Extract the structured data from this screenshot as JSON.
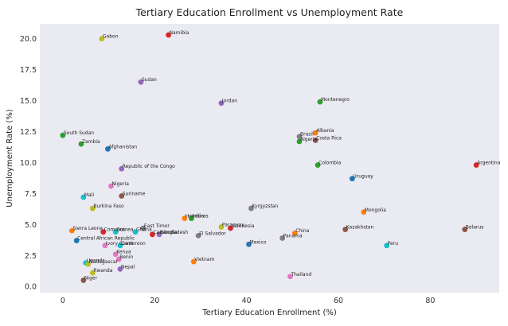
{
  "chart_data": {
    "type": "scatter",
    "title": "Tertiary Education Enrollment vs Unemployment Rate",
    "xlabel": "Tertiary Education Enrollment (%)",
    "ylabel": "Unemployment Rate (%)",
    "xlim": [
      -5,
      95
    ],
    "ylim": [
      -0.5,
      21.2
    ],
    "xticks": [
      0,
      20,
      40,
      60,
      80
    ],
    "yticks": [
      0.0,
      2.5,
      5.0,
      7.5,
      10.0,
      12.5,
      15.0,
      17.5,
      20.0
    ],
    "xtick_labels": [
      "0",
      "20",
      "40",
      "60",
      "80"
    ],
    "ytick_labels": [
      "0.0",
      "2.5",
      "5.0",
      "7.5",
      "10.0",
      "12.5",
      "15.0",
      "17.5",
      "20.0"
    ],
    "grid": false,
    "points": [
      {
        "label": "Gabon",
        "x": 8.5,
        "y": 20.0,
        "color": "#bcbd22"
      },
      {
        "label": "Namibia",
        "x": 23.0,
        "y": 20.3,
        "color": "#d62728"
      },
      {
        "label": "Sudan",
        "x": 17.0,
        "y": 16.5,
        "color": "#9467bd"
      },
      {
        "label": "Jordan",
        "x": 34.5,
        "y": 14.8,
        "color": "#9467bd"
      },
      {
        "label": "Montenegro",
        "x": 56.0,
        "y": 14.9,
        "color": "#2ca02c"
      },
      {
        "label": "South Sudan",
        "x": 0.0,
        "y": 12.2,
        "color": "#2ca02c"
      },
      {
        "label": "Albania",
        "x": 55.0,
        "y": 12.4,
        "color": "#ff7f0e"
      },
      {
        "label": "Brazil",
        "x": 51.5,
        "y": 12.1,
        "color": "#7f7f7f"
      },
      {
        "label": "Costa Rica",
        "x": 55.0,
        "y": 11.8,
        "color": "#8c564b"
      },
      {
        "label": "Algeria",
        "x": 51.5,
        "y": 11.7,
        "color": "#2ca02c"
      },
      {
        "label": "Zambia",
        "x": 4.0,
        "y": 11.5,
        "color": "#2ca02c"
      },
      {
        "label": "Afghanistan",
        "x": 9.8,
        "y": 11.1,
        "color": "#1f77b4"
      },
      {
        "label": "Argentina",
        "x": 90.0,
        "y": 9.8,
        "color": "#d62728"
      },
      {
        "label": "Colombia",
        "x": 55.5,
        "y": 9.8,
        "color": "#2ca02c"
      },
      {
        "label": "Republic of the Congo",
        "x": 12.8,
        "y": 9.5,
        "color": "#9467bd"
      },
      {
        "label": "Uruguay",
        "x": 63.0,
        "y": 8.7,
        "color": "#1f77b4"
      },
      {
        "label": "Nigeria",
        "x": 10.5,
        "y": 8.1,
        "color": "#e377c2"
      },
      {
        "label": "Mali",
        "x": 4.5,
        "y": 7.2,
        "color": "#17becf"
      },
      {
        "label": "Suriname",
        "x": 12.8,
        "y": 7.3,
        "color": "#8c564b"
      },
      {
        "label": "Kyrgyzstan",
        "x": 41.0,
        "y": 6.3,
        "color": "#7f7f7f"
      },
      {
        "label": "Burkina Faso",
        "x": 6.5,
        "y": 6.3,
        "color": "#bcbd22"
      },
      {
        "label": "Mongolia",
        "x": 65.5,
        "y": 6.0,
        "color": "#ff7f0e"
      },
      {
        "label": "Honduras",
        "x": 26.5,
        "y": 5.5,
        "color": "#ff7f0e"
      },
      {
        "label": "India",
        "x": 28.0,
        "y": 5.5,
        "color": "#2ca02c"
      },
      {
        "label": "Paraguay",
        "x": 34.5,
        "y": 4.8,
        "color": "#bcbd22"
      },
      {
        "label": "Indonesia",
        "x": 36.5,
        "y": 4.7,
        "color": "#d62728"
      },
      {
        "label": "East Timor",
        "x": 17.5,
        "y": 4.7,
        "color": "#7f7f7f"
      },
      {
        "label": "Sierra Leone",
        "x": 2.0,
        "y": 4.5,
        "color": "#ff7f0e"
      },
      {
        "label": "Comoros",
        "x": 8.8,
        "y": 4.4,
        "color": "#d62728"
      },
      {
        "label": "Guinea",
        "x": 11.5,
        "y": 4.4,
        "color": "#17becf"
      },
      {
        "label": "Ghana",
        "x": 15.8,
        "y": 4.4,
        "color": "#17becf"
      },
      {
        "label": "Bangladesh",
        "x": 21.0,
        "y": 4.2,
        "color": "#9467bd"
      },
      {
        "label": "Cambodia",
        "x": 19.5,
        "y": 4.2,
        "color": "#d62728"
      },
      {
        "label": "El Salvador",
        "x": 29.5,
        "y": 4.1,
        "color": "#7f7f7f"
      },
      {
        "label": "China",
        "x": 50.5,
        "y": 4.3,
        "color": "#ff7f0e"
      },
      {
        "label": "Kazakhstan",
        "x": 61.5,
        "y": 4.6,
        "color": "#8c564b"
      },
      {
        "label": "Belarus",
        "x": 87.5,
        "y": 4.6,
        "color": "#8c564b"
      },
      {
        "label": "Panama",
        "x": 47.8,
        "y": 3.9,
        "color": "#7f7f7f"
      },
      {
        "label": "Central African Republic",
        "x": 3.0,
        "y": 3.7,
        "color": "#1f77b4"
      },
      {
        "label": "Mexico",
        "x": 40.5,
        "y": 3.4,
        "color": "#1f77b4"
      },
      {
        "label": "Peru",
        "x": 70.5,
        "y": 3.3,
        "color": "#17becf"
      },
      {
        "label": "Ivory Coast",
        "x": 9.2,
        "y": 3.3,
        "color": "#e377c2"
      },
      {
        "label": "Cameroon",
        "x": 12.5,
        "y": 3.3,
        "color": "#17becf"
      },
      {
        "label": "Kenya",
        "x": 11.5,
        "y": 2.6,
        "color": "#e377c2"
      },
      {
        "label": "Benin",
        "x": 12.2,
        "y": 2.2,
        "color": "#e377c2"
      },
      {
        "label": "Vietnam",
        "x": 28.5,
        "y": 2.0,
        "color": "#ff7f0e"
      },
      {
        "label": "Uganda",
        "x": 5.0,
        "y": 1.9,
        "color": "#17becf"
      },
      {
        "label": "Madagascar",
        "x": 5.5,
        "y": 1.8,
        "color": "#bcbd22"
      },
      {
        "label": "Nepal",
        "x": 12.5,
        "y": 1.4,
        "color": "#9467bd"
      },
      {
        "label": "Rwanda",
        "x": 6.5,
        "y": 1.1,
        "color": "#bcbd22"
      },
      {
        "label": "Thailand",
        "x": 49.5,
        "y": 0.8,
        "color": "#e377c2"
      },
      {
        "label": "Niger",
        "x": 4.5,
        "y": 0.5,
        "color": "#8c564b"
      }
    ]
  },
  "colors": {
    "plot_background": "#eaeaf2",
    "page_background": "#ffffff"
  }
}
